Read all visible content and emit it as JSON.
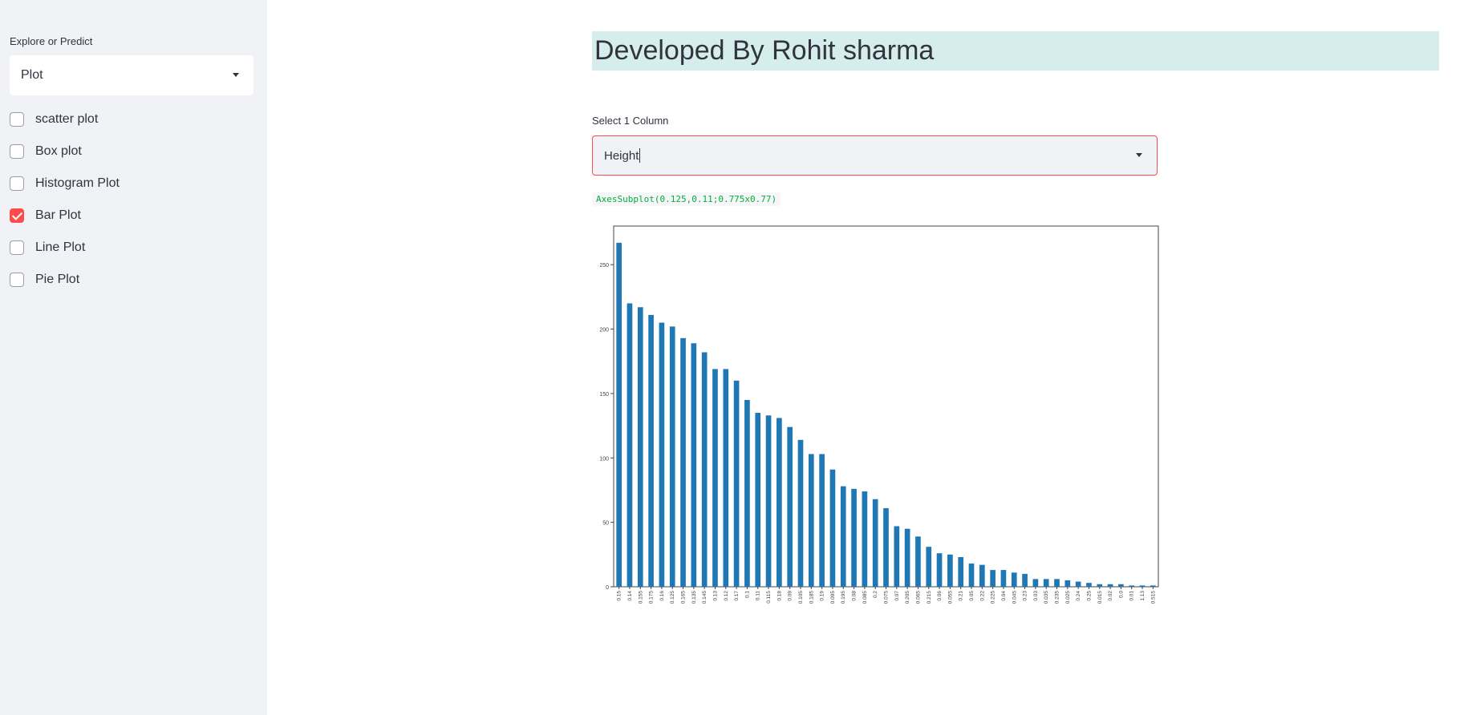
{
  "sidebar": {
    "label": "Explore or Predict",
    "select_value": "Plot",
    "checkboxes": [
      {
        "label": "scatter plot",
        "checked": false
      },
      {
        "label": "Box plot",
        "checked": false
      },
      {
        "label": "Histogram Plot",
        "checked": false
      },
      {
        "label": "Bar Plot",
        "checked": true
      },
      {
        "label": "Line Plot",
        "checked": false
      },
      {
        "label": "Pie Plot",
        "checked": false
      }
    ]
  },
  "main": {
    "title": "Developed By Rohit sharma",
    "column_label": "Select 1 Column",
    "column_value": "Height",
    "output_text": "AxesSubplot(0.125,0.11;0.775x0.77)"
  },
  "colors": {
    "accent": "#ff4b4b",
    "bar": "#1f77b4",
    "title_bg": "#d5eeec",
    "sidebar_bg": "#f0f2f6"
  },
  "chart_data": {
    "type": "bar",
    "categories": [
      "0.15",
      "0.14",
      "0.155",
      "0.175",
      "0.16",
      "0.125",
      "0.165",
      "0.135",
      "0.145",
      "0.13",
      "0.12",
      "0.17",
      "0.1",
      "0.11",
      "0.115",
      "0.18",
      "0.09",
      "0.105",
      "0.185",
      "0.19",
      "0.095",
      "0.195",
      "0.08",
      "0.085",
      "0.2",
      "0.075",
      "0.07",
      "0.205",
      "0.065",
      "0.215",
      "0.06",
      "0.055",
      "0.21",
      "0.05",
      "0.22",
      "0.225",
      "0.04",
      "0.045",
      "0.23",
      "0.03",
      "0.035",
      "0.235",
      "0.025",
      "0.24",
      "0.25",
      "0.015",
      "0.02",
      "0.0",
      "0.01",
      "1.13",
      "0.515"
    ],
    "values": [
      267,
      220,
      217,
      211,
      205,
      202,
      193,
      189,
      182,
      169,
      169,
      160,
      145,
      135,
      133,
      131,
      124,
      114,
      103,
      103,
      91,
      78,
      76,
      74,
      68,
      61,
      47,
      45,
      39,
      31,
      26,
      25,
      23,
      18,
      17,
      13,
      13,
      11,
      10,
      6,
      6,
      6,
      5,
      4,
      3,
      2,
      2,
      2,
      1,
      1,
      1
    ],
    "yticks": [
      0,
      50,
      100,
      150,
      200,
      250
    ],
    "ylim": [
      0,
      280
    ]
  }
}
